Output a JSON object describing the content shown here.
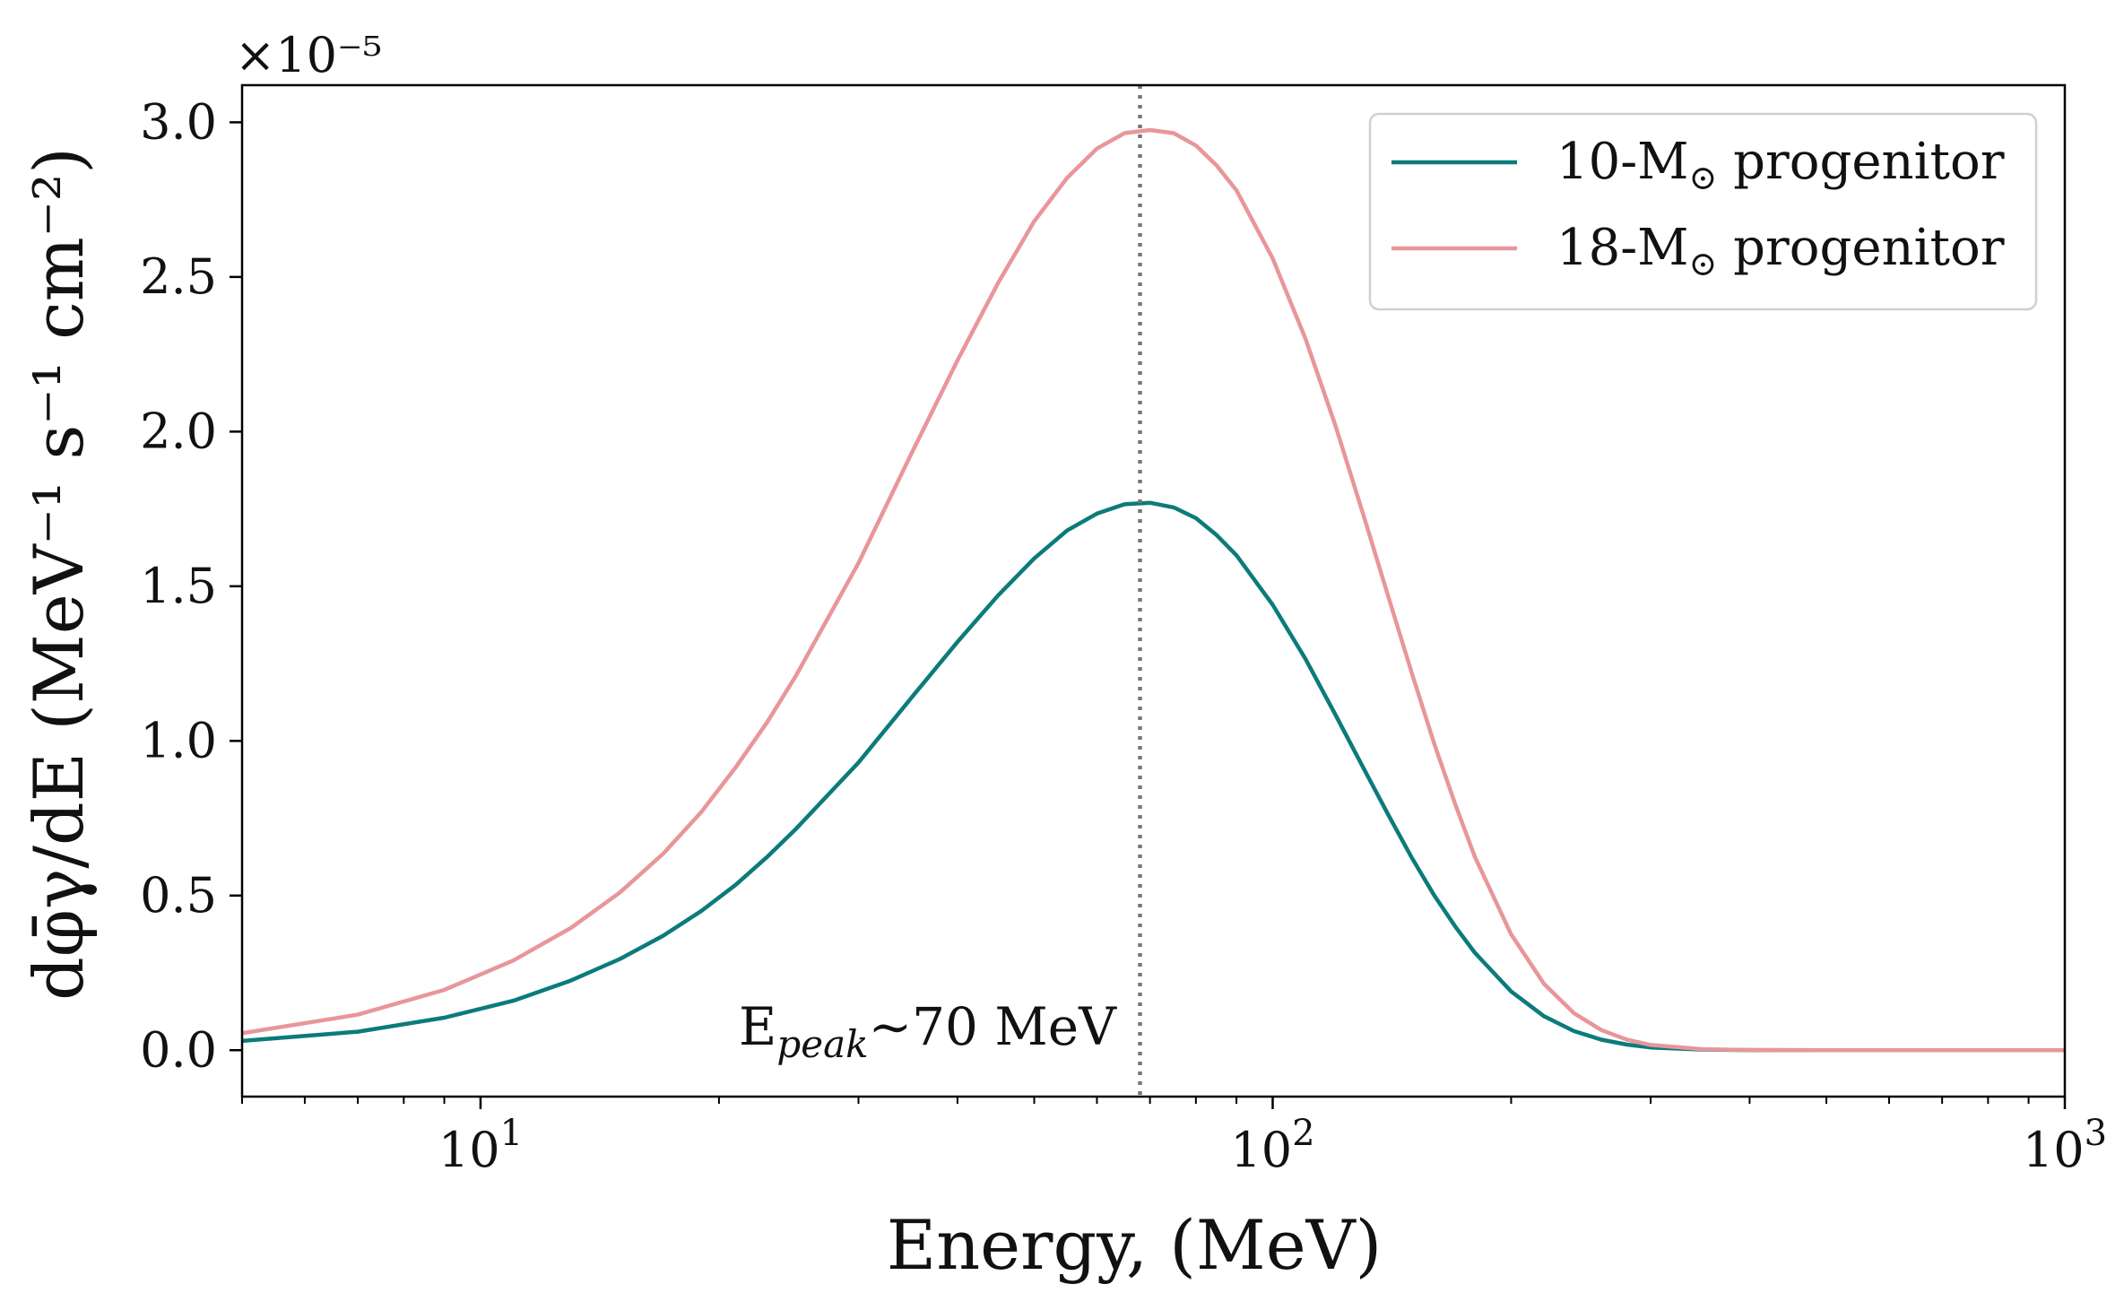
{
  "chart_data": {
    "type": "line",
    "title": "",
    "xlabel": "Energy, (MeV)",
    "ylabel": "dφ̄γ/dE (MeV⁻¹ s⁻¹ cm⁻²)",
    "xscale": "log",
    "xlim": [
      5,
      1000
    ],
    "ylim": [
      -0.15,
      3.12
    ],
    "y_multiplier": "×10⁻⁵",
    "x_ticks": [
      {
        "value": 10,
        "base": "10",
        "exp": "1"
      },
      {
        "value": 100,
        "base": "10",
        "exp": "2"
      },
      {
        "value": 1000,
        "base": "10",
        "exp": "3"
      }
    ],
    "y_ticks": [
      {
        "value": 0.0,
        "label": "0.0"
      },
      {
        "value": 0.5,
        "label": "0.5"
      },
      {
        "value": 1.0,
        "label": "1.0"
      },
      {
        "value": 1.5,
        "label": "1.5"
      },
      {
        "value": 2.0,
        "label": "2.0"
      },
      {
        "value": 2.5,
        "label": "2.5"
      },
      {
        "value": 3.0,
        "label": "3.0"
      }
    ],
    "x": [
      5,
      7,
      9,
      11,
      13,
      15,
      17,
      19,
      21,
      23,
      25,
      30,
      35,
      40,
      45,
      50,
      55,
      60,
      65,
      70,
      75,
      80,
      85,
      90,
      100,
      110,
      120,
      130,
      140,
      150,
      160,
      170,
      180,
      200,
      220,
      240,
      260,
      280,
      300,
      350,
      400,
      500,
      600,
      700,
      800,
      1000
    ],
    "series": [
      {
        "name": "10-M⊙ progenitor",
        "label_main": "10-M",
        "label_sub": "⊙",
        "label_rest": " progenitor",
        "color": "#0b7b7b",
        "values": [
          0.03,
          0.06,
          0.105,
          0.16,
          0.225,
          0.295,
          0.37,
          0.45,
          0.535,
          0.625,
          0.715,
          0.93,
          1.14,
          1.32,
          1.47,
          1.59,
          1.68,
          1.735,
          1.765,
          1.77,
          1.755,
          1.72,
          1.665,
          1.6,
          1.44,
          1.265,
          1.085,
          0.915,
          0.76,
          0.62,
          0.5,
          0.4,
          0.315,
          0.19,
          0.11,
          0.062,
          0.034,
          0.018,
          0.009,
          0.002,
          0.0005,
          0.0,
          0.0,
          0.0,
          0.0,
          0.0
        ]
      },
      {
        "name": "18-M⊙ progenitor",
        "label_main": "18-M",
        "label_sub": "⊙",
        "label_rest": " progenitor",
        "color": "#e8969a",
        "values": [
          0.055,
          0.115,
          0.195,
          0.29,
          0.395,
          0.51,
          0.635,
          0.77,
          0.915,
          1.06,
          1.21,
          1.575,
          1.93,
          2.23,
          2.48,
          2.68,
          2.82,
          2.915,
          2.965,
          2.975,
          2.965,
          2.925,
          2.86,
          2.78,
          2.56,
          2.3,
          2.02,
          1.735,
          1.465,
          1.215,
          0.99,
          0.795,
          0.625,
          0.375,
          0.215,
          0.12,
          0.065,
          0.034,
          0.017,
          0.003,
          0.0006,
          0.0,
          0.0,
          0.0,
          0.0,
          0.0
        ]
      }
    ],
    "vline": {
      "x": 68,
      "style": "dotted",
      "color": "#777777"
    },
    "annotation": {
      "main": "E",
      "sub": "peak",
      "rest": "∼70 MeV"
    },
    "legend": {
      "position": "top-right"
    },
    "grid": false
  }
}
